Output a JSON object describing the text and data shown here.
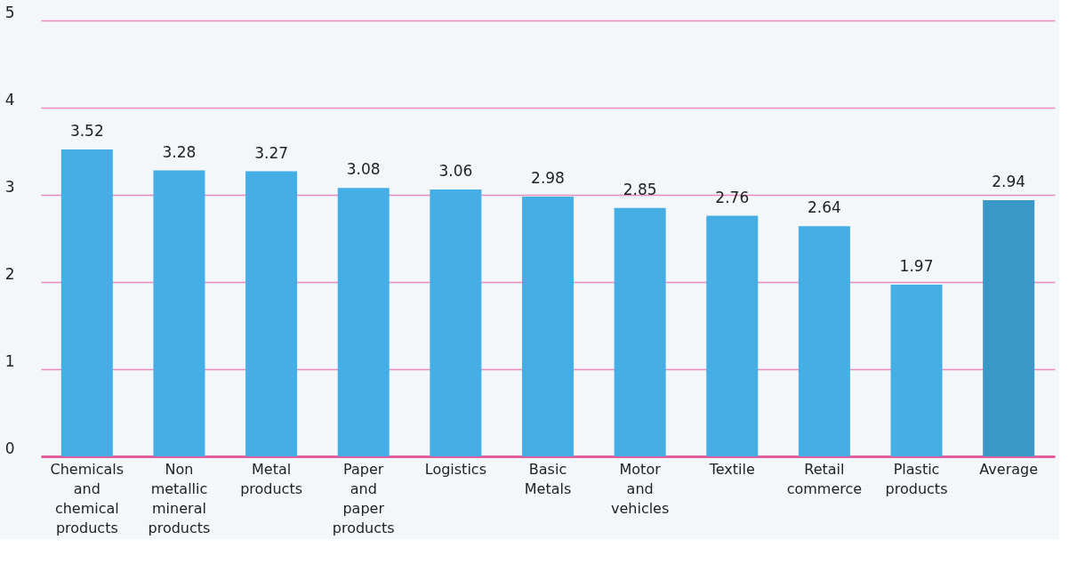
{
  "chart_data": {
    "type": "bar",
    "categories": [
      "Chemicals and chemical products",
      "Non metallic mineral products",
      "Metal products",
      "Paper and paper products",
      "Logistics",
      "Basic Metals",
      "Motor and vehicles",
      "Textile",
      "Retail commerce",
      "Plastic products",
      "Average"
    ],
    "values": [
      3.52,
      3.28,
      3.27,
      3.08,
      3.06,
      2.98,
      2.85,
      2.76,
      2.64,
      1.97,
      2.94
    ],
    "colors": [
      "#45aee4",
      "#45aee4",
      "#45aee4",
      "#45aee4",
      "#45aee4",
      "#45aee4",
      "#45aee4",
      "#45aee4",
      "#45aee4",
      "#45aee4",
      "#3a98c9"
    ],
    "ylim": [
      0,
      5
    ],
    "yticks": [
      0,
      1,
      2,
      3,
      4,
      5
    ],
    "grid": "y",
    "data_labels": true
  }
}
